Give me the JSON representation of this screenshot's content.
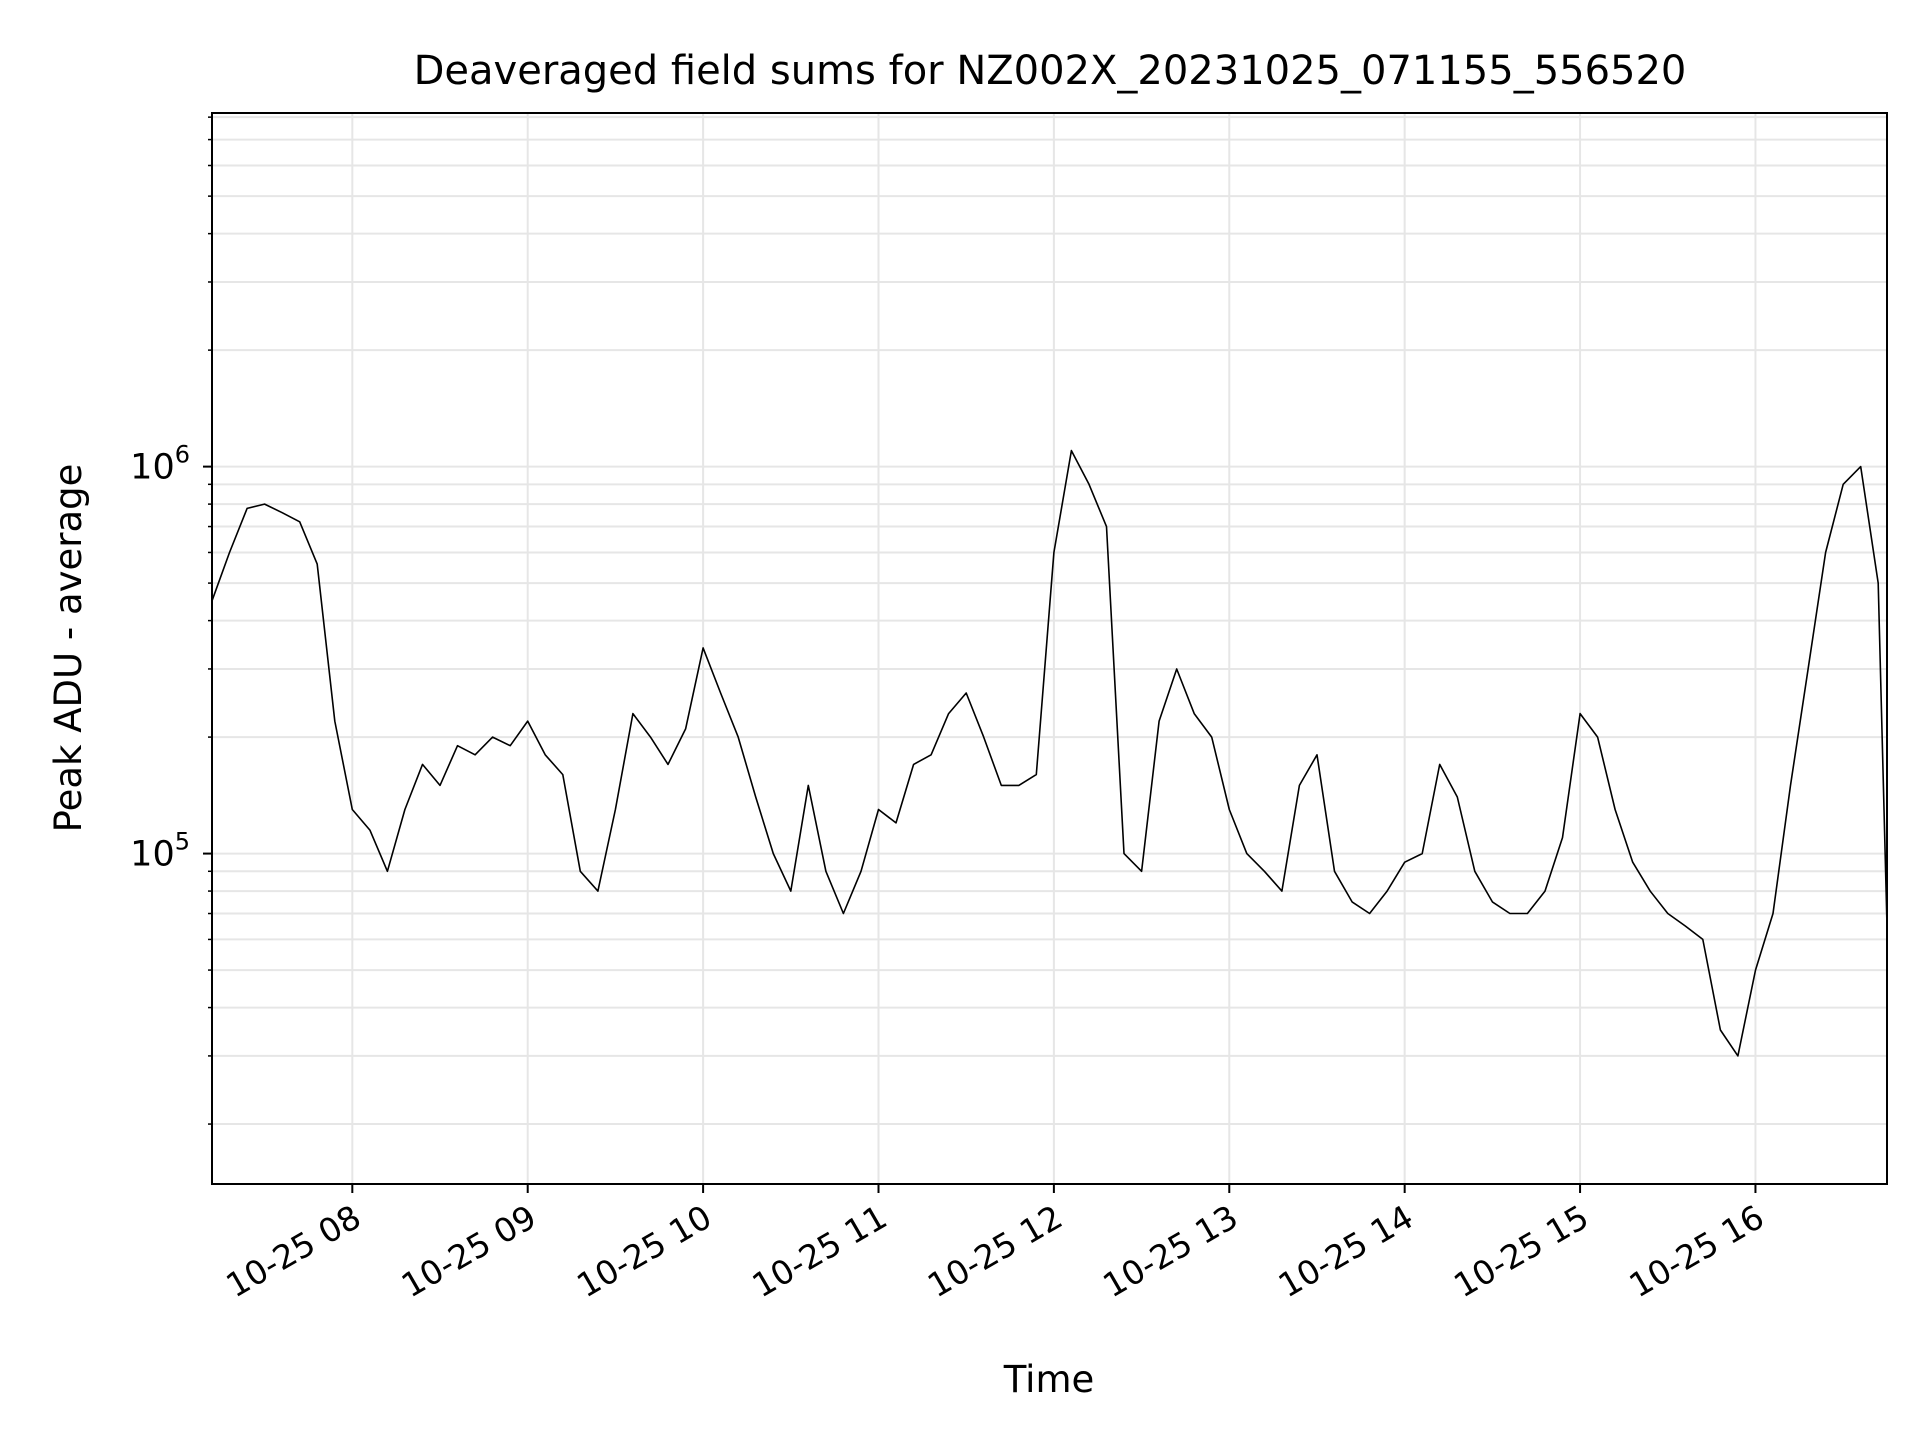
{
  "chart_data": {
    "type": "line",
    "title": "Deaveraged field sums for NZ002X_20231025_071155_556520",
    "xlabel": "Time",
    "ylabel": "Peak ADU - average",
    "xlim": [
      "2023-10-25 07:12",
      "2023-10-25 16:45"
    ],
    "ylim": [
      14000,
      8200000
    ],
    "yscale": "log",
    "grid": true,
    "x_tick_labels": [
      "10-25 08",
      "10-25 09",
      "10-25 10",
      "10-25 11",
      "10-25 12",
      "10-25 13",
      "10-25 14",
      "10-25 15",
      "10-25 16"
    ],
    "x_tick_values": [
      "2023-10-25 08:00",
      "2023-10-25 09:00",
      "2023-10-25 10:00",
      "2023-10-25 11:00",
      "2023-10-25 12:00",
      "2023-10-25 13:00",
      "2023-10-25 14:00",
      "2023-10-25 15:00",
      "2023-10-25 16:00"
    ],
    "y_tick_labels": [
      {
        "base": "10",
        "exp": "5"
      },
      {
        "base": "10",
        "exp": "6"
      }
    ],
    "y_tick_values": [
      100000,
      1000000
    ],
    "series": [
      {
        "color": "#000000",
        "x": [
          "2023-10-25 07:12",
          "2023-10-25 07:18",
          "2023-10-25 07:24",
          "2023-10-25 07:30",
          "2023-10-25 07:36",
          "2023-10-25 07:42",
          "2023-10-25 07:48",
          "2023-10-25 07:54",
          "2023-10-25 08:00",
          "2023-10-25 08:06",
          "2023-10-25 08:12",
          "2023-10-25 08:18",
          "2023-10-25 08:24",
          "2023-10-25 08:30",
          "2023-10-25 08:36",
          "2023-10-25 08:42",
          "2023-10-25 08:48",
          "2023-10-25 08:54",
          "2023-10-25 09:00",
          "2023-10-25 09:06",
          "2023-10-25 09:12",
          "2023-10-25 09:18",
          "2023-10-25 09:24",
          "2023-10-25 09:30",
          "2023-10-25 09:36",
          "2023-10-25 09:42",
          "2023-10-25 09:48",
          "2023-10-25 09:54",
          "2023-10-25 10:00",
          "2023-10-25 10:06",
          "2023-10-25 10:12",
          "2023-10-25 10:18",
          "2023-10-25 10:24",
          "2023-10-25 10:30",
          "2023-10-25 10:36",
          "2023-10-25 10:42",
          "2023-10-25 10:48",
          "2023-10-25 10:54",
          "2023-10-25 11:00",
          "2023-10-25 11:06",
          "2023-10-25 11:12",
          "2023-10-25 11:18",
          "2023-10-25 11:24",
          "2023-10-25 11:30",
          "2023-10-25 11:36",
          "2023-10-25 11:42",
          "2023-10-25 11:48",
          "2023-10-25 11:54",
          "2023-10-25 12:00",
          "2023-10-25 12:06",
          "2023-10-25 12:12",
          "2023-10-25 12:18",
          "2023-10-25 12:24",
          "2023-10-25 12:30",
          "2023-10-25 12:36",
          "2023-10-25 12:42",
          "2023-10-25 12:48",
          "2023-10-25 12:54",
          "2023-10-25 13:00",
          "2023-10-25 13:06",
          "2023-10-25 13:12",
          "2023-10-25 13:18",
          "2023-10-25 13:24",
          "2023-10-25 13:30",
          "2023-10-25 13:36",
          "2023-10-25 13:42",
          "2023-10-25 13:48",
          "2023-10-25 13:54",
          "2023-10-25 14:00",
          "2023-10-25 14:06",
          "2023-10-25 14:12",
          "2023-10-25 14:18",
          "2023-10-25 14:24",
          "2023-10-25 14:30",
          "2023-10-25 14:36",
          "2023-10-25 14:42",
          "2023-10-25 14:48",
          "2023-10-25 14:54",
          "2023-10-25 15:00",
          "2023-10-25 15:06",
          "2023-10-25 15:12",
          "2023-10-25 15:18",
          "2023-10-25 15:24",
          "2023-10-25 15:30",
          "2023-10-25 15:36",
          "2023-10-25 15:42",
          "2023-10-25 15:48",
          "2023-10-25 15:54",
          "2023-10-25 16:00",
          "2023-10-25 16:06",
          "2023-10-25 16:12",
          "2023-10-25 16:18",
          "2023-10-25 16:24",
          "2023-10-25 16:30",
          "2023-10-25 16:36",
          "2023-10-25 16:42",
          "2023-10-25 16:45"
        ],
        "values": [
          450000,
          600000,
          780000,
          800000,
          760000,
          720000,
          560000,
          220000,
          130000,
          115000,
          90000,
          130000,
          170000,
          150000,
          190000,
          180000,
          200000,
          190000,
          220000,
          180000,
          160000,
          90000,
          80000,
          130000,
          230000,
          200000,
          170000,
          210000,
          340000,
          260000,
          200000,
          140000,
          100000,
          80000,
          150000,
          90000,
          70000,
          90000,
          130000,
          120000,
          170000,
          180000,
          230000,
          260000,
          200000,
          150000,
          150000,
          160000,
          600000,
          1100000,
          900000,
          700000,
          100000,
          90000,
          220000,
          300000,
          230000,
          200000,
          130000,
          100000,
          90000,
          80000,
          150000,
          180000,
          90000,
          75000,
          70000,
          80000,
          95000,
          100000,
          170000,
          140000,
          90000,
          75000,
          70000,
          70000,
          80000,
          110000,
          230000,
          200000,
          130000,
          95000,
          80000,
          70000,
          65000,
          60000,
          35000,
          30000,
          50000,
          70000,
          150000,
          300000,
          600000,
          900000,
          1000000,
          500000,
          65000
        ]
      }
    ]
  }
}
